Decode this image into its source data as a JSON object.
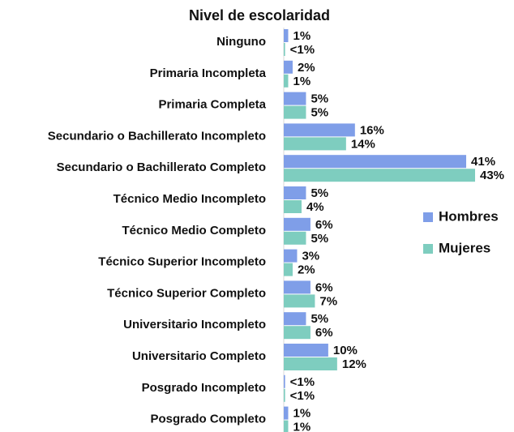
{
  "chart_data": {
    "type": "bar",
    "orientation": "horizontal",
    "title": "Nivel de escolaridad",
    "categories": [
      "Ninguno",
      "Primaria Incompleta",
      "Primaria Completa",
      "Secundario o Bachillerato Incompleto",
      "Secundario o Bachillerato Completo",
      "Técnico Medio Incompleto",
      "Técnico Medio Completo",
      "Técnico Superior Incompleto",
      "Técnico Superior Completo",
      "Universitario Incompleto",
      "Universitario Completo",
      "Posgrado Incompleto",
      "Posgrado Completo"
    ],
    "series": [
      {
        "name": "Hombres",
        "color": "#7f9ee8",
        "values": [
          1,
          2,
          5,
          16,
          41,
          5,
          6,
          3,
          6,
          5,
          10,
          0.3,
          1
        ],
        "value_labels": [
          "1%",
          "2%",
          "5%",
          "16%",
          "41%",
          "5%",
          "6%",
          "3%",
          "6%",
          "5%",
          "10%",
          "<1%",
          "1%"
        ]
      },
      {
        "name": "Mujeres",
        "color": "#7ecdbf",
        "values": [
          0.3,
          1,
          5,
          14,
          43,
          4,
          5,
          2,
          7,
          6,
          12,
          0.3,
          1
        ],
        "value_labels": [
          "<1%",
          "1%",
          "5%",
          "14%",
          "43%",
          "4%",
          "5%",
          "2%",
          "7%",
          "6%",
          "12%",
          "<1%",
          "1%"
        ]
      }
    ],
    "legend": "right"
  }
}
